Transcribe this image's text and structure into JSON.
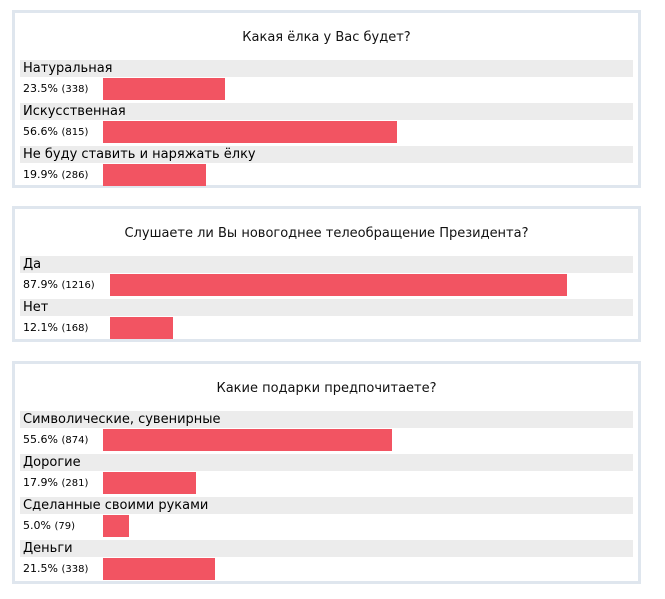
{
  "chart_data": [
    {
      "type": "bar",
      "title": "Какая ёлка у Вас будет?",
      "bar_color": "#f25462",
      "categories": [
        "Натуральная",
        "Искусственная",
        "Не буду ставить и наряжать ёлку"
      ],
      "percent_labels": [
        "23.5%",
        "56.6%",
        "19.9%"
      ],
      "count_labels": [
        "(338)",
        "(815)",
        "(286)"
      ],
      "values": [
        23.5,
        56.6,
        19.9
      ],
      "counts": [
        338,
        815,
        286
      ]
    },
    {
      "type": "bar",
      "title": "Слушаете ли Вы новогоднее телеобращение Президента?",
      "bar_color": "#f25462",
      "categories": [
        "Да",
        "Нет"
      ],
      "percent_labels": [
        "87.9%",
        "12.1%"
      ],
      "count_labels": [
        "(1216)",
        "(168)"
      ],
      "values": [
        87.9,
        12.1
      ],
      "counts": [
        1216,
        168
      ]
    },
    {
      "type": "bar",
      "title": "Какие подарки предпочитаете?",
      "bar_color": "#f25462",
      "categories": [
        "Символические, сувенирные",
        "Дорогие",
        "Сделанные своими руками",
        "Деньги"
      ],
      "percent_labels": [
        "55.6%",
        "17.9%",
        "5.0%",
        "21.5%"
      ],
      "count_labels": [
        "(874)",
        "(281)",
        "(79)",
        "(338)"
      ],
      "values": [
        55.6,
        17.9,
        5.0,
        21.5
      ],
      "counts": [
        874,
        281,
        79,
        338
      ]
    }
  ]
}
